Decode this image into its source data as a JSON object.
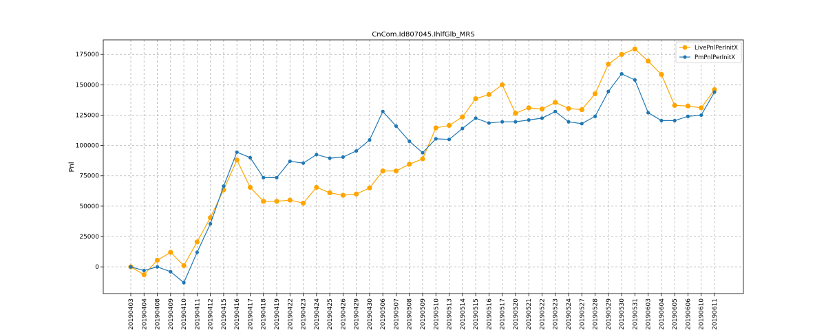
{
  "chart_data": {
    "type": "line",
    "title": "CnCom.Id807045.IhlfGlb_MRS",
    "xlabel": "",
    "ylabel": "Pnl",
    "ylim": [
      -22000,
      187000
    ],
    "yticks": [
      0,
      25000,
      50000,
      75000,
      100000,
      125000,
      150000,
      175000
    ],
    "ytick_labels": [
      "0",
      "25000",
      "50000",
      "75000",
      "100000",
      "125000",
      "150000",
      "175000"
    ],
    "grid": true,
    "legend_position": "top-right",
    "categories": [
      "20190403",
      "20190404",
      "20190408",
      "20190409",
      "20190410",
      "20190411",
      "20190412",
      "20190415",
      "20190416",
      "20190417",
      "20190418",
      "20190419",
      "20190422",
      "20190423",
      "20190424",
      "20190425",
      "20190426",
      "20190429",
      "20190430",
      "20190506",
      "20190507",
      "20190508",
      "20190509",
      "20190510",
      "20190513",
      "20190514",
      "20190515",
      "20190516",
      "20190517",
      "20190520",
      "20190521",
      "20190522",
      "20190523",
      "20190524",
      "20190527",
      "20190528",
      "20190529",
      "20190530",
      "20190531",
      "20190603",
      "20190604",
      "20190605",
      "20190606",
      "20190610",
      "20190611"
    ],
    "series": [
      {
        "name": "LivePnlPerInitX",
        "color": "#ffa500",
        "marker_radius": 3.6,
        "values": [
          0,
          -6500,
          5500,
          12000,
          1000,
          20500,
          40500,
          63500,
          88000,
          65500,
          54000,
          54000,
          55000,
          52500,
          65500,
          61000,
          59000,
          60000,
          65000,
          79000,
          79000,
          84500,
          89000,
          114500,
          116500,
          123500,
          138500,
          142000,
          150000,
          126500,
          131000,
          130000,
          135500,
          130500,
          129500,
          142500,
          167000,
          175000,
          179500,
          169500,
          158500,
          133000,
          132500,
          131000,
          146000
        ]
      },
      {
        "name": "PmPnlPerInitX",
        "color": "#1f77b4",
        "marker_radius": 2.6,
        "values": [
          0,
          -3000,
          0,
          -4000,
          -13000,
          12000,
          35500,
          66500,
          94500,
          90000,
          73500,
          73500,
          87000,
          85500,
          92500,
          89500,
          90500,
          95500,
          104500,
          128000,
          116000,
          103500,
          94000,
          105500,
          105000,
          114000,
          122500,
          118500,
          119500,
          119500,
          121000,
          122500,
          128000,
          119500,
          118000,
          124000,
          144500,
          159000,
          154000,
          127000,
          120500,
          120500,
          124000,
          125000,
          144000
        ]
      }
    ]
  }
}
